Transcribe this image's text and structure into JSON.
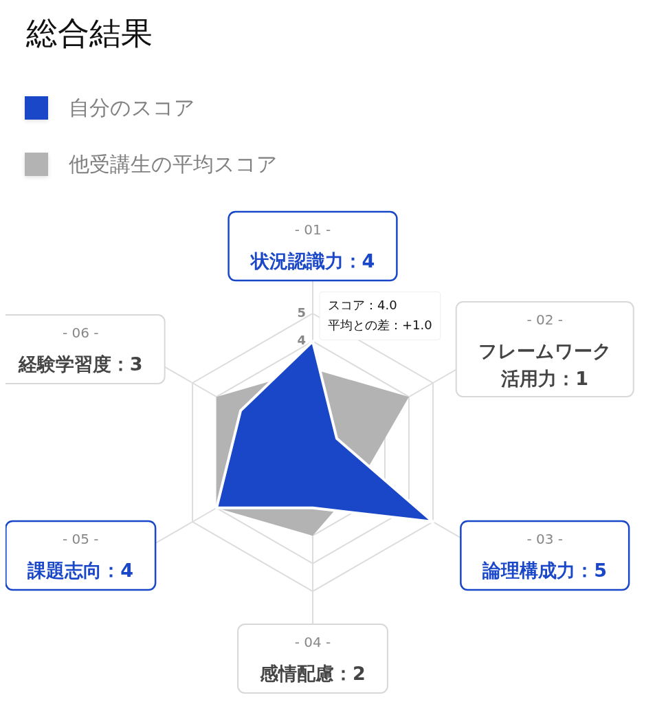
{
  "chart_data": {
    "type": "radar",
    "title": "総合結果",
    "legend": "top left",
    "categories": [
      "状況認識力：4",
      "フレームワーク活用力：1",
      "論理構成力：5",
      "感情配慮：2",
      "課題志向：4",
      "経験学習度：3"
    ],
    "series": [
      {
        "name": "自分のスコア",
        "color": "#1a47c8",
        "values": [
          4,
          1,
          5,
          2,
          4,
          3
        ]
      },
      {
        "name": "他受講生の平均スコア",
        "color": "#b3b3b3",
        "values": [
          3,
          4,
          2,
          3,
          4,
          4
        ]
      }
    ],
    "ylim": [
      0,
      5
    ],
    "yticks": [
      4,
      5
    ],
    "grid": true,
    "annotations": [
      "- 01 -",
      "- 02 -",
      "- 03 -",
      "- 04 -",
      "- 05 -",
      "- 06 -",
      "スコア：4.0",
      "平均との差：+1.0"
    ]
  }
}
